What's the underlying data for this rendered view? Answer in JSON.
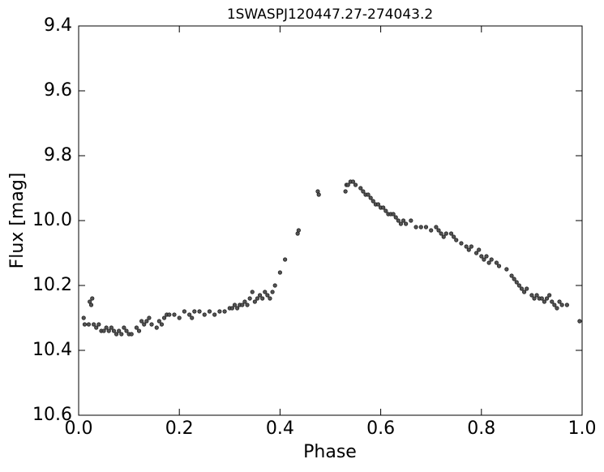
{
  "chart_data": {
    "type": "scatter",
    "title": "1SWASPJ120447.27-274043.2",
    "x_label": "Phase",
    "y_label": "Flux [mag]",
    "xlim": [
      0,
      1
    ],
    "ylim": [
      10.6,
      9.4
    ],
    "xticks": [
      {
        "value": 0,
        "label": "0.0"
      },
      0.2,
      0.4,
      0.6,
      0.8,
      {
        "value": 1,
        "label": "1.0"
      }
    ],
    "yticks": [
      9.4,
      9.6,
      9.8,
      {
        "value": 10,
        "label": "10.0"
      },
      10.2,
      10.4,
      10.6
    ],
    "color": "#555555",
    "x": [
      0.01,
      0.012,
      0.02,
      0.022,
      0.025,
      0.027,
      0.03,
      0.035,
      0.04,
      0.045,
      0.05,
      0.055,
      0.06,
      0.065,
      0.07,
      0.075,
      0.08,
      0.085,
      0.09,
      0.095,
      0.1,
      0.105,
      0.115,
      0.12,
      0.125,
      0.13,
      0.135,
      0.14,
      0.145,
      0.155,
      0.16,
      0.165,
      0.17,
      0.175,
      0.18,
      0.19,
      0.2,
      0.21,
      0.22,
      0.225,
      0.23,
      0.24,
      0.25,
      0.26,
      0.27,
      0.28,
      0.29,
      0.3,
      0.305,
      0.31,
      0.315,
      0.32,
      0.325,
      0.33,
      0.335,
      0.34,
      0.345,
      0.35,
      0.355,
      0.36,
      0.365,
      0.37,
      0.375,
      0.38,
      0.385,
      0.39,
      0.4,
      0.41,
      0.435,
      0.437,
      0.475,
      0.477,
      0.53,
      0.532,
      0.535,
      0.54,
      0.545,
      0.55,
      0.56,
      0.565,
      0.57,
      0.575,
      0.58,
      0.585,
      0.59,
      0.595,
      0.6,
      0.605,
      0.61,
      0.615,
      0.62,
      0.625,
      0.63,
      0.635,
      0.64,
      0.645,
      0.65,
      0.66,
      0.67,
      0.68,
      0.69,
      0.7,
      0.71,
      0.715,
      0.72,
      0.725,
      0.73,
      0.74,
      0.745,
      0.75,
      0.76,
      0.77,
      0.775,
      0.78,
      0.79,
      0.795,
      0.8,
      0.805,
      0.81,
      0.815,
      0.82,
      0.83,
      0.835,
      0.85,
      0.86,
      0.865,
      0.87,
      0.875,
      0.88,
      0.885,
      0.89,
      0.9,
      0.905,
      0.91,
      0.915,
      0.92,
      0.925,
      0.93,
      0.935,
      0.94,
      0.945,
      0.95,
      0.955,
      0.96,
      0.97,
      0.995
    ],
    "values": [
      10.3,
      10.32,
      10.32,
      10.25,
      10.26,
      10.24,
      10.32,
      10.33,
      10.32,
      10.34,
      10.34,
      10.33,
      10.34,
      10.33,
      10.34,
      10.35,
      10.34,
      10.35,
      10.33,
      10.34,
      10.35,
      10.35,
      10.33,
      10.34,
      10.31,
      10.32,
      10.31,
      10.3,
      10.32,
      10.33,
      10.31,
      10.32,
      10.3,
      10.29,
      10.29,
      10.29,
      10.3,
      10.28,
      10.29,
      10.3,
      10.28,
      10.28,
      10.29,
      10.28,
      10.29,
      10.28,
      10.28,
      10.27,
      10.27,
      10.26,
      10.27,
      10.26,
      10.26,
      10.25,
      10.26,
      10.24,
      10.22,
      10.25,
      10.24,
      10.23,
      10.24,
      10.22,
      10.23,
      10.24,
      10.22,
      10.2,
      10.16,
      10.12,
      10.04,
      10.03,
      9.91,
      9.92,
      9.91,
      9.89,
      9.89,
      9.88,
      9.88,
      9.89,
      9.9,
      9.91,
      9.92,
      9.92,
      9.93,
      9.94,
      9.95,
      9.95,
      9.96,
      9.96,
      9.97,
      9.98,
      9.98,
      9.98,
      9.99,
      10.0,
      10.01,
      10.0,
      10.01,
      10.0,
      10.02,
      10.02,
      10.02,
      10.03,
      10.02,
      10.03,
      10.04,
      10.05,
      10.04,
      10.04,
      10.05,
      10.06,
      10.07,
      10.08,
      10.09,
      10.08,
      10.1,
      10.09,
      10.11,
      10.12,
      10.11,
      10.13,
      10.12,
      10.13,
      10.14,
      10.15,
      10.17,
      10.18,
      10.19,
      10.2,
      10.21,
      10.22,
      10.21,
      10.23,
      10.24,
      10.23,
      10.24,
      10.24,
      10.25,
      10.24,
      10.23,
      10.25,
      10.26,
      10.27,
      10.25,
      10.26,
      10.26,
      10.31
    ]
  }
}
